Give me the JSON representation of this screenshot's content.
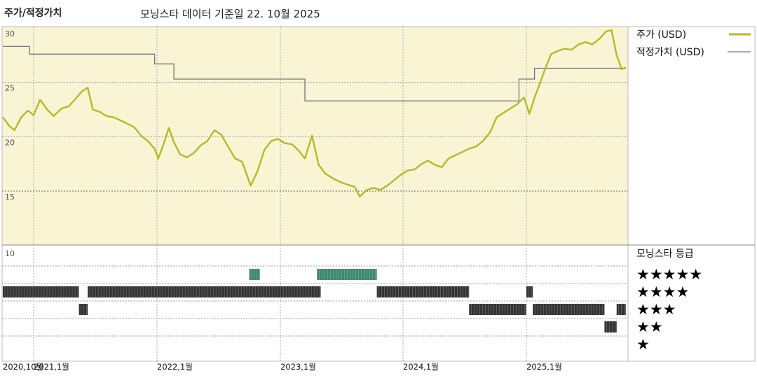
{
  "header": {
    "left_title": "주가/적정가치",
    "title": "모닝스타 데이터 기준일 22. 10월 2025"
  },
  "colors": {
    "price": "#b7b928",
    "fair_value": "#777777",
    "upper_bg": "#f8f4d4",
    "bar_green": "#3d8a6d",
    "bar_dark": "#333333"
  },
  "legend": {
    "price_label": "주가 (USD)",
    "fair_label": "적정가치 (USD)",
    "rating_title": "모닝스타 등급",
    "stars": [
      "★★★★★",
      "★★★★",
      "★★★",
      "★★",
      "★"
    ]
  },
  "chart_data": [
    {
      "type": "line",
      "y_tick_labels": [
        "30",
        "25",
        "20",
        "15"
      ],
      "ylim": [
        10,
        30
      ],
      "x_tick_labels": [
        "2020,10월",
        "2021,1월",
        "2022,1월",
        "2023,1월",
        "2024,1월",
        "2025,1월"
      ],
      "series": [
        {
          "name": "주가 (USD)",
          "points": [
            [
              "2020-10-01",
              21.8
            ],
            [
              "2020-10-20",
              21.0
            ],
            [
              "2020-11-05",
              20.6
            ],
            [
              "2020-11-25",
              21.8
            ],
            [
              "2020-12-15",
              22.4
            ],
            [
              "2021-01-01",
              22.0
            ],
            [
              "2021-01-20",
              23.4
            ],
            [
              "2021-02-10",
              22.5
            ],
            [
              "2021-03-01",
              21.9
            ],
            [
              "2021-03-25",
              22.6
            ],
            [
              "2021-04-15",
              22.8
            ],
            [
              "2021-05-05",
              23.5
            ],
            [
              "2021-05-25",
              24.2
            ],
            [
              "2021-06-10",
              24.5
            ],
            [
              "2021-06-25",
              22.5
            ],
            [
              "2021-07-15",
              22.3
            ],
            [
              "2021-08-05",
              21.9
            ],
            [
              "2021-08-25",
              21.8
            ],
            [
              "2021-09-15",
              21.5
            ],
            [
              "2021-10-05",
              21.2
            ],
            [
              "2021-10-25",
              20.9
            ],
            [
              "2021-11-15",
              20.1
            ],
            [
              "2021-12-05",
              19.6
            ],
            [
              "2021-12-25",
              18.9
            ],
            [
              "2022-01-05",
              18.0
            ],
            [
              "2022-01-20",
              19.3
            ],
            [
              "2022-02-05",
              20.8
            ],
            [
              "2022-02-20",
              19.5
            ],
            [
              "2022-03-10",
              18.4
            ],
            [
              "2022-03-30",
              18.1
            ],
            [
              "2022-04-20",
              18.5
            ],
            [
              "2022-05-10",
              19.2
            ],
            [
              "2022-05-30",
              19.6
            ],
            [
              "2022-06-20",
              20.6
            ],
            [
              "2022-07-10",
              20.2
            ],
            [
              "2022-07-30",
              19.1
            ],
            [
              "2022-08-20",
              18.0
            ],
            [
              "2022-09-10",
              17.7
            ],
            [
              "2022-10-05",
              15.5
            ],
            [
              "2022-10-25",
              16.8
            ],
            [
              "2022-11-15",
              18.8
            ],
            [
              "2022-12-05",
              19.6
            ],
            [
              "2022-12-25",
              19.8
            ],
            [
              "2023-01-15",
              19.4
            ],
            [
              "2023-02-05",
              19.3
            ],
            [
              "2023-02-25",
              18.7
            ],
            [
              "2023-03-15",
              18.0
            ],
            [
              "2023-04-05",
              20.1
            ],
            [
              "2023-04-25",
              17.4
            ],
            [
              "2023-05-15",
              16.6
            ],
            [
              "2023-06-10",
              16.1
            ],
            [
              "2023-07-01",
              15.8
            ],
            [
              "2023-07-20",
              15.6
            ],
            [
              "2023-08-10",
              15.4
            ],
            [
              "2023-08-25",
              14.5
            ],
            [
              "2023-09-15",
              15.1
            ],
            [
              "2023-10-05",
              15.3
            ],
            [
              "2023-10-25",
              15.1
            ],
            [
              "2023-11-15",
              15.5
            ],
            [
              "2023-12-05",
              16.0
            ],
            [
              "2023-12-25",
              16.5
            ],
            [
              "2024-01-15",
              16.9
            ],
            [
              "2024-02-05",
              17.0
            ],
            [
              "2024-02-25",
              17.5
            ],
            [
              "2024-03-15",
              17.8
            ],
            [
              "2024-04-05",
              17.4
            ],
            [
              "2024-04-25",
              17.2
            ],
            [
              "2024-05-15",
              18.0
            ],
            [
              "2024-06-05",
              18.3
            ],
            [
              "2024-06-25",
              18.6
            ],
            [
              "2024-07-15",
              18.9
            ],
            [
              "2024-08-05",
              19.1
            ],
            [
              "2024-08-25",
              19.6
            ],
            [
              "2024-09-15",
              20.4
            ],
            [
              "2024-10-05",
              21.8
            ],
            [
              "2024-10-25",
              22.2
            ],
            [
              "2024-11-15",
              22.6
            ],
            [
              "2024-12-05",
              23.0
            ],
            [
              "2024-12-25",
              23.6
            ],
            [
              "2025-01-10",
              22.1
            ],
            [
              "2025-01-25",
              23.6
            ],
            [
              "2025-02-10",
              24.9
            ],
            [
              "2025-02-25",
              26.2
            ],
            [
              "2025-03-15",
              27.6
            ],
            [
              "2025-04-05",
              27.9
            ],
            [
              "2025-04-25",
              28.1
            ],
            [
              "2025-05-15",
              28.0
            ],
            [
              "2025-06-05",
              28.5
            ],
            [
              "2025-06-25",
              28.7
            ],
            [
              "2025-07-15",
              28.5
            ],
            [
              "2025-08-05",
              29.0
            ],
            [
              "2025-08-25",
              29.7
            ],
            [
              "2025-09-10",
              29.8
            ],
            [
              "2025-09-25",
              27.5
            ],
            [
              "2025-10-10",
              26.2
            ],
            [
              "2025-10-22",
              26.4
            ]
          ]
        },
        {
          "name": "적정가치 (USD)",
          "step": true,
          "points": [
            [
              "2020-10-01",
              28.3
            ],
            [
              "2020-12-20",
              28.3
            ],
            [
              "2020-12-20",
              27.6
            ],
            [
              "2021-12-25",
              27.6
            ],
            [
              "2021-12-25",
              26.7
            ],
            [
              "2022-02-20",
              26.7
            ],
            [
              "2022-02-20",
              25.3
            ],
            [
              "2023-03-15",
              25.3
            ],
            [
              "2023-03-15",
              23.3
            ],
            [
              "2024-12-10",
              23.3
            ],
            [
              "2024-12-10",
              25.3
            ],
            [
              "2025-01-25",
              25.3
            ],
            [
              "2025-01-25",
              26.3
            ],
            [
              "2025-10-22",
              26.3
            ]
          ]
        }
      ]
    },
    {
      "type": "bar",
      "ylim": [
        0,
        10
      ],
      "y_tick_labels": [
        "10"
      ],
      "series": [
        {
          "name": "★★★★★",
          "ranges": [
            [
              "2022-10-01",
              "2022-11-01"
            ],
            [
              "2023-04-20",
              "2023-10-15"
            ]
          ]
        },
        {
          "name": "★★★★",
          "ranges": [
            [
              "2020-10-01",
              "2021-05-15"
            ],
            [
              "2021-06-10",
              "2023-05-01"
            ],
            [
              "2023-10-15",
              "2024-07-15"
            ],
            [
              "2025-01-01",
              "2025-01-20"
            ]
          ]
        },
        {
          "name": "★★★",
          "ranges": [
            [
              "2021-05-15",
              "2021-06-10"
            ],
            [
              "2024-07-15",
              "2024-12-31"
            ],
            [
              "2025-01-20",
              "2025-08-20"
            ],
            [
              "2025-09-25",
              "2025-10-22"
            ]
          ]
        },
        {
          "name": "★★",
          "ranges": [
            [
              "2025-08-20",
              "2025-09-25"
            ]
          ]
        },
        {
          "name": "★",
          "ranges": []
        }
      ]
    }
  ]
}
